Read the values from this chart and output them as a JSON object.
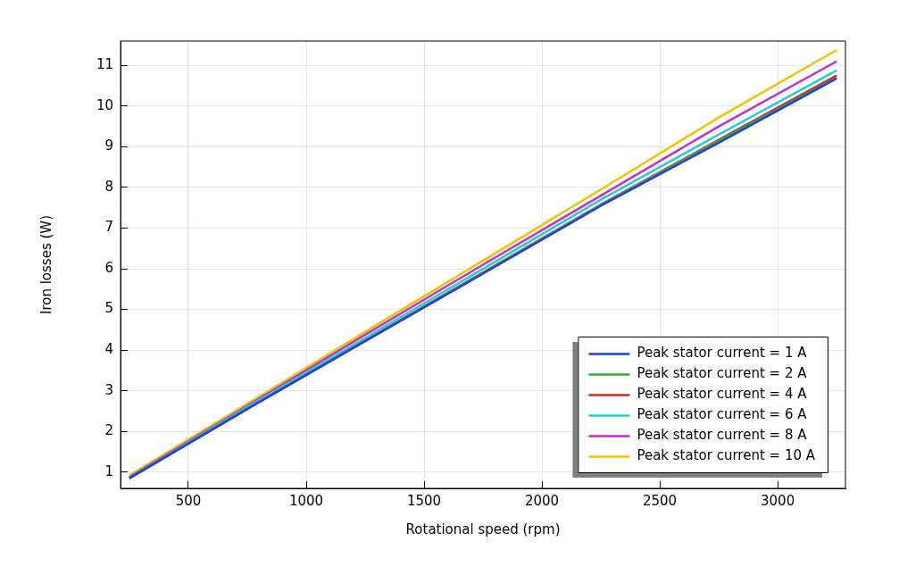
{
  "chart_data": {
    "type": "line",
    "xlabel": "Rotational speed (rpm)",
    "ylabel": "Iron losses (W)",
    "x": [
      250,
      750,
      1250,
      1750,
      2250,
      2750,
      3250
    ],
    "series": [
      {
        "name": "Peak stator current = 1 A",
        "color": "#1f3fe6",
        "values": [
          0.85,
          2.55,
          4.22,
          5.88,
          7.55,
          9.1,
          10.68
        ]
      },
      {
        "name": "Peak stator current = 2 A",
        "color": "#3aaa3a",
        "values": [
          0.85,
          2.56,
          4.23,
          5.9,
          7.57,
          9.15,
          10.7
        ]
      },
      {
        "name": "Peak stator current = 4 A",
        "color": "#d42a10",
        "values": [
          0.85,
          2.56,
          4.24,
          5.91,
          7.58,
          9.17,
          10.75
        ]
      },
      {
        "name": "Peak stator current = 6 A",
        "color": "#1fcfd6",
        "values": [
          0.86,
          2.6,
          4.3,
          6.0,
          7.7,
          9.3,
          10.88
        ]
      },
      {
        "name": "Peak stator current = 8 A",
        "color": "#c030d0",
        "values": [
          0.88,
          2.63,
          4.38,
          6.1,
          7.8,
          9.5,
          11.1
        ]
      },
      {
        "name": "Peak stator current = 10 A",
        "color": "#f5c000",
        "values": [
          0.92,
          2.68,
          4.45,
          6.2,
          7.95,
          9.72,
          11.38
        ]
      }
    ],
    "xlim": [
      212.5,
      3287.5
    ],
    "xticks": [
      500,
      1000,
      1500,
      2000,
      2500,
      3000
    ],
    "ylim": [
      0.6,
      11.6
    ],
    "yticks": [
      1,
      2,
      3,
      4,
      5,
      6,
      7,
      8,
      9,
      10,
      11
    ],
    "grid": true,
    "legend": "bottom right",
    "marker": "none",
    "line_style": "solid"
  }
}
